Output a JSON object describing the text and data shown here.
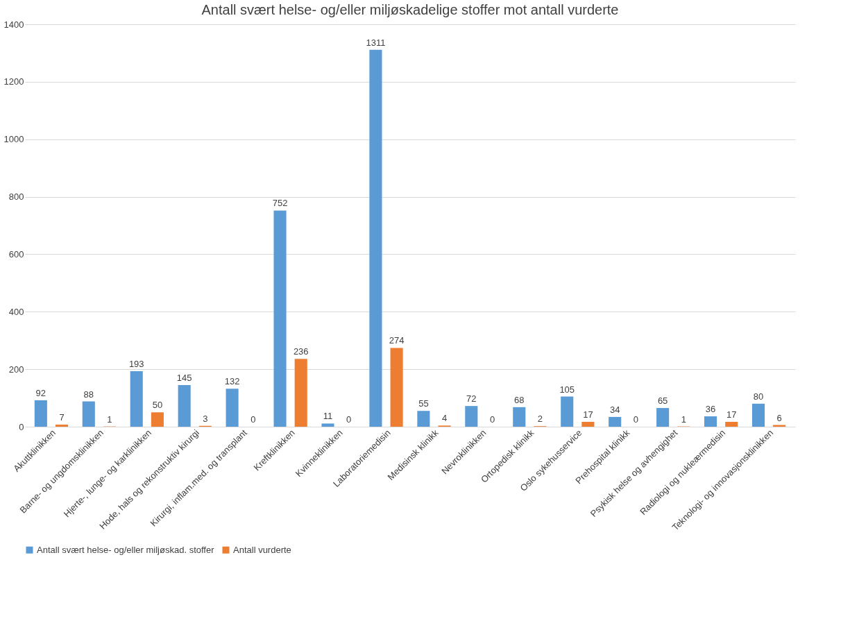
{
  "chart_data": {
    "type": "bar",
    "title": "Antall svært helse- og/eller miljøskadelige stoffer mot antall vurderte",
    "categories": [
      "Akuttklinikken",
      "Barne- og ungdomsklinikken",
      "Hjerte-, lunge- og karklinikken",
      "Hode, hals og rekonstruktiv kirurgi",
      "Kirurgi, inflam.med. og transplant",
      "Kreftklinikken",
      "Kvinneklinikken",
      "Laboratoriemedisin",
      "Medisinsk klinikk",
      "Nevroklinikken",
      "Ortopedisk klinikk",
      "Oslo sykehusservice",
      "Prehospital klinikk",
      "Psykisk helse og avhengighet",
      "Radiologi og nukleærmedisin",
      "Teknologi- og innovasjonsklinikken"
    ],
    "series": [
      {
        "name": "Antall svært helse- og/eller miljøskad. stoffer",
        "color": "#5b9bd5",
        "values": [
          92,
          88,
          193,
          145,
          132,
          752,
          11,
          1311,
          55,
          72,
          68,
          105,
          34,
          65,
          36,
          80
        ]
      },
      {
        "name": "Antall vurderte",
        "color": "#ed7d31",
        "values": [
          7,
          1,
          50,
          3,
          0,
          236,
          0,
          274,
          4,
          0,
          2,
          17,
          0,
          1,
          17,
          6
        ]
      }
    ],
    "ylim": [
      0,
      1400
    ],
    "yticks": [
      0,
      200,
      400,
      600,
      800,
      1000,
      1200,
      1400
    ],
    "grid": "y",
    "legend": "bottom",
    "data_labels": true
  }
}
